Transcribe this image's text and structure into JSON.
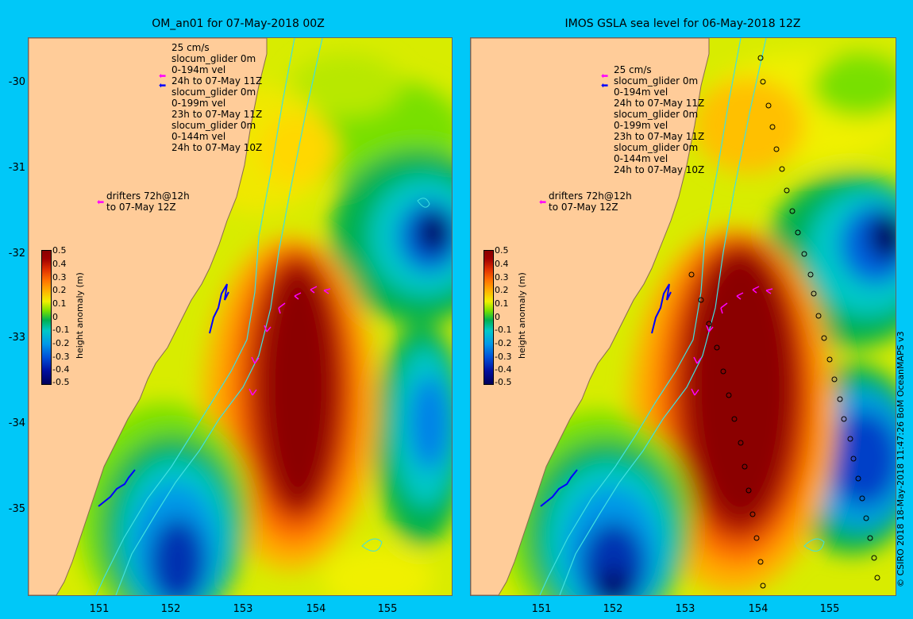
{
  "left_panel": {
    "title": "OM_an01 for 07-May-2018 00Z"
  },
  "right_panel": {
    "title": "IMOS GSLA sea level  for 06-May-2018 12Z"
  },
  "legend": {
    "lines": [
      "25 cm/s",
      "slocum_glider 0m",
      "0-194m vel",
      "24h to 07-May 11Z",
      "slocum_glider 0m",
      "0-199m vel",
      "23h to 07-May 11Z",
      "slocum_glider 0m",
      "0-144m vel",
      "24h to 07-May 10Z"
    ],
    "drifters": [
      "drifters 72h@12h",
      "to 07-May 12Z"
    ],
    "colors": {
      "velocity": "#ff00ff",
      "glider": "#0000ff"
    }
  },
  "colorbar": {
    "label": "height anomaly (m)",
    "ticks": [
      "0.5",
      "0.4",
      "0.3",
      "0.2",
      "0.1",
      "0",
      "-0.1",
      "-0.2",
      "-0.3",
      "-0.4",
      "-0.5"
    ]
  },
  "axes": {
    "lat_ticks": [
      "-30",
      "-31",
      "-32",
      "-33",
      "-34",
      "-35"
    ],
    "lon_ticks": [
      "151",
      "152",
      "153",
      "154",
      "155"
    ]
  },
  "credit": "© CSIRO 2018   18-May-2018 11:47:26 BoM OceanMAPS v3"
}
